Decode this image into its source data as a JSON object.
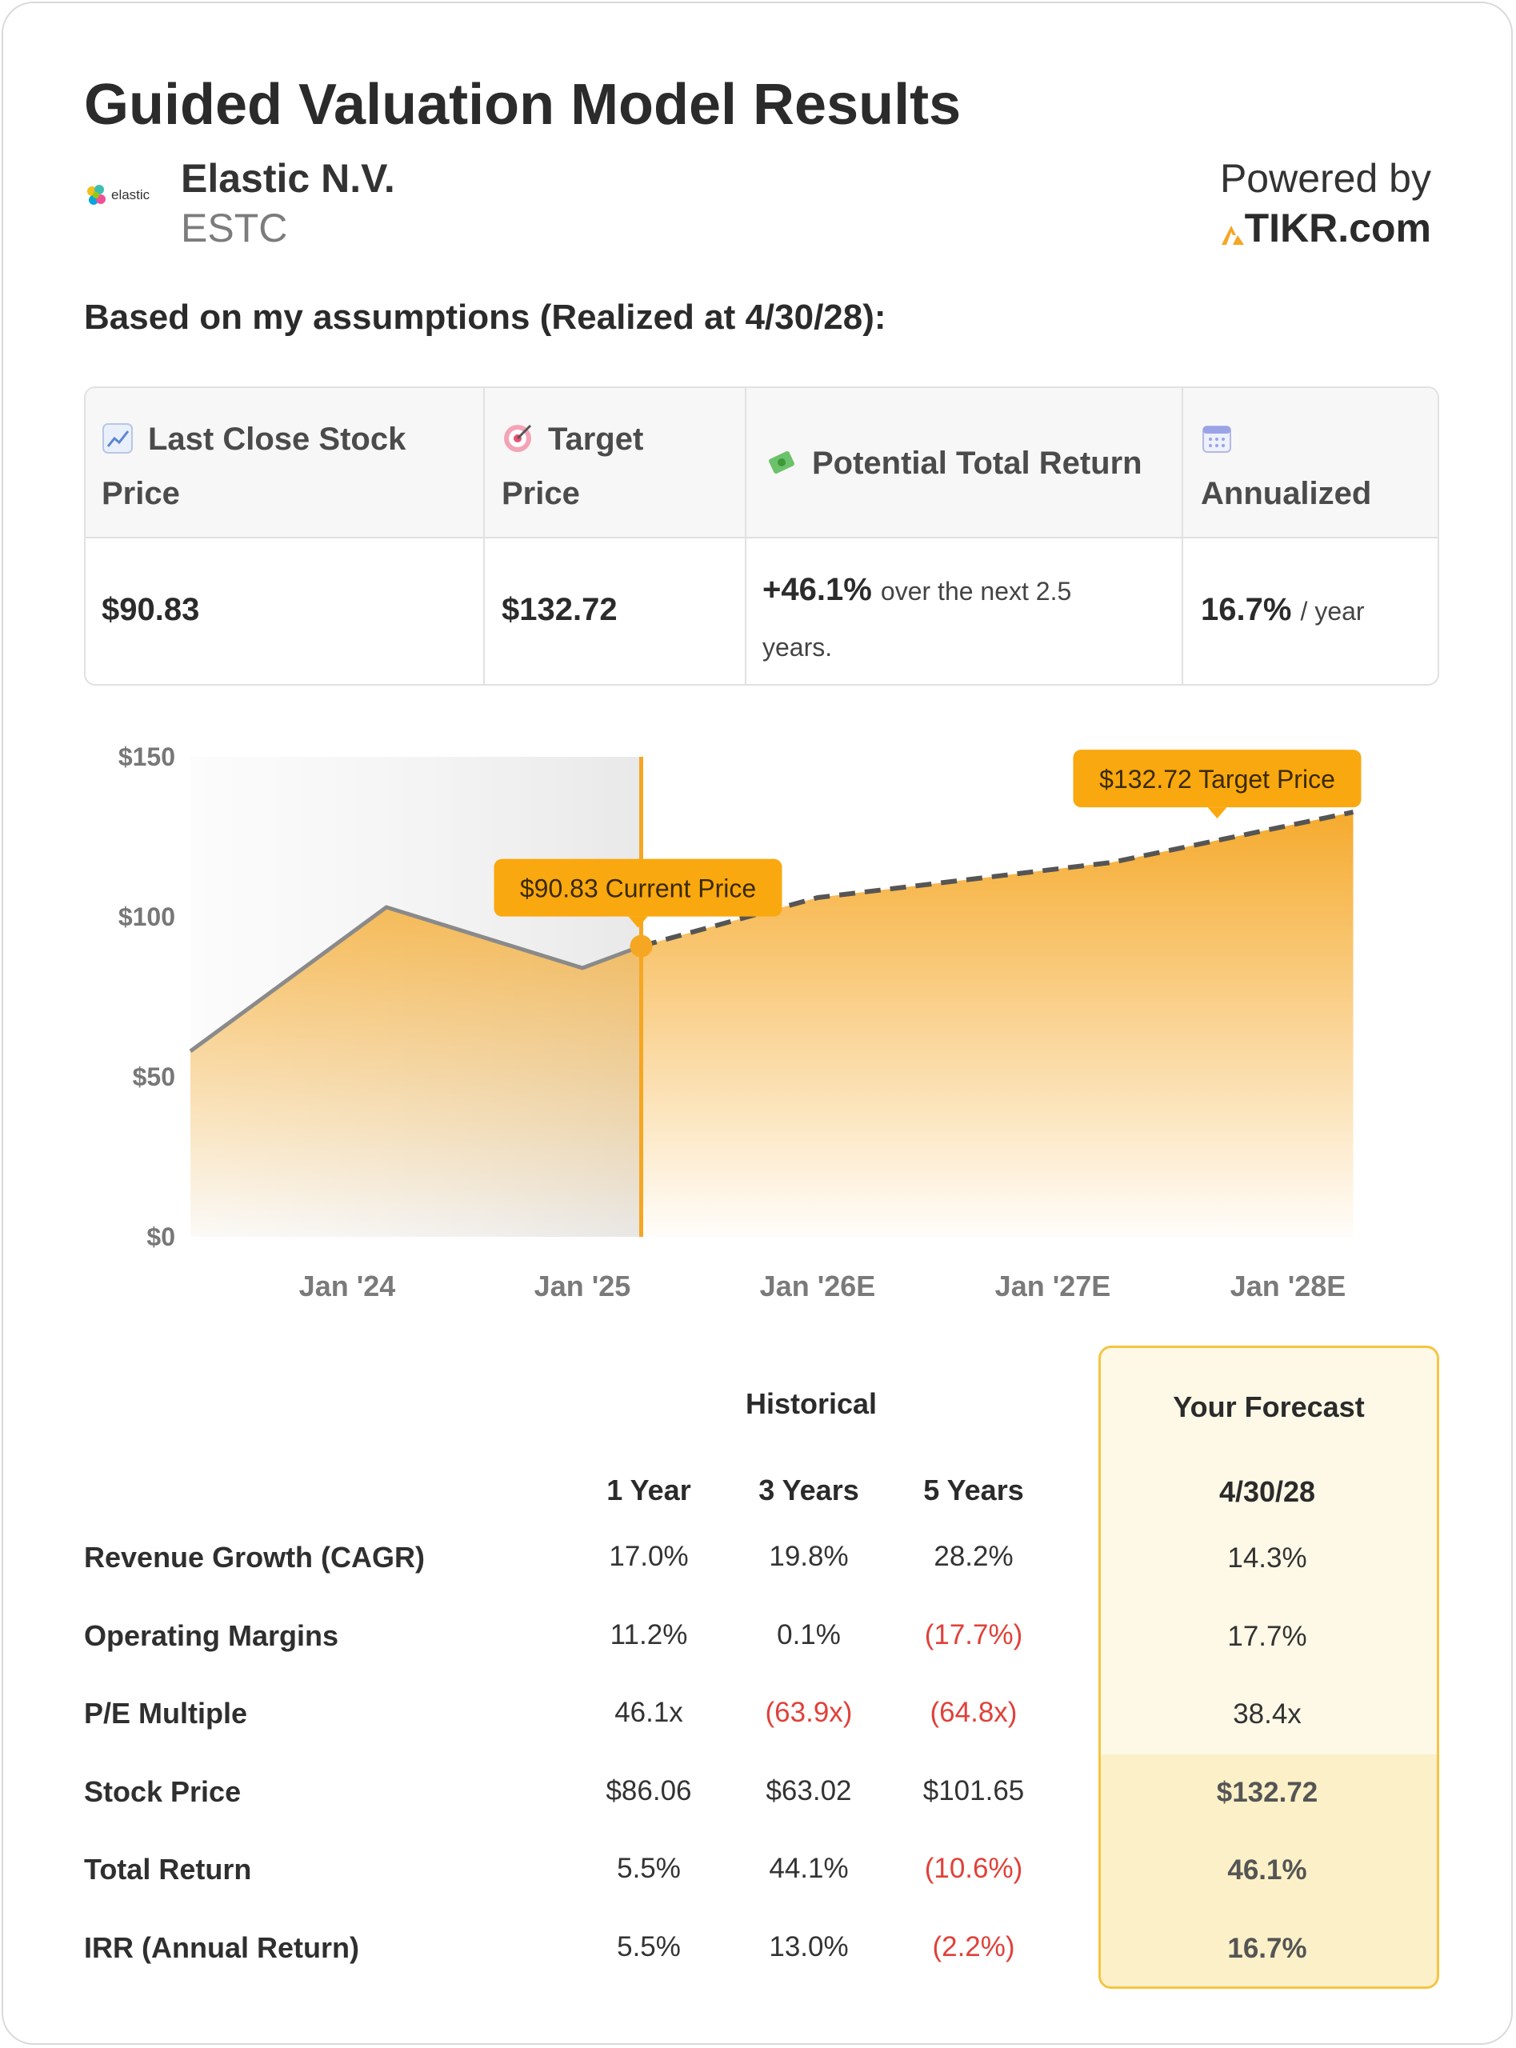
{
  "header": {
    "title": "Guided Valuation Model Results",
    "company_name": "Elastic N.V.",
    "ticker": "ESTC",
    "logo_text": "elastic",
    "powered_by": "Powered by",
    "brand": "TIKR.com",
    "assumptions": "Based on my assumptions (Realized at 4/30/28):"
  },
  "stats": {
    "last_close_label": "Last Close Stock Price",
    "last_close_icon": "chart-increasing-icon",
    "last_close_value": "$90.83",
    "target_label": "Target Price",
    "target_icon": "target-icon",
    "target_value": "$132.72",
    "return_label": "Potential Total Return",
    "return_icon": "money-with-wings-icon",
    "return_value": "+46.1%",
    "return_note": "over the next 2.5 years.",
    "annualized_label": "Annualized",
    "annualized_icon": "calendar-icon",
    "annualized_value": "16.7%",
    "annualized_unit": "/ year"
  },
  "chart_data": {
    "type": "area",
    "x_ticks": [
      "Jan '24",
      "Jan '25",
      "Jan '26E",
      "Jan '27E",
      "Jan '28E"
    ],
    "y_ticks": [
      "$0",
      "$50",
      "$100",
      "$150"
    ],
    "ylim": [
      0,
      150
    ],
    "historical": [
      {
        "x": "May '23",
        "y": 58
      },
      {
        "x": "Mar '24",
        "y": 103
      },
      {
        "x": "Jan '25",
        "y": 84
      },
      {
        "x": "Apr '25",
        "y": 90.83
      }
    ],
    "forecast": [
      {
        "x": "Apr '25",
        "y": 90.83
      },
      {
        "x": "Jan '26",
        "y": 106
      },
      {
        "x": "Apr '27",
        "y": 117
      },
      {
        "x": "Apr '28",
        "y": 132.72
      }
    ],
    "current_label": "$90.83 Current Price",
    "target_label": "$132.72 Target Price",
    "colors": {
      "area": "#f5a623",
      "history_line": "#8a8a8a",
      "forecast_line": "#555555",
      "marker": "#f5a623"
    }
  },
  "metrics": {
    "historical_label": "Historical",
    "forecast_label": "Your Forecast",
    "columns": [
      "1 Year",
      "3 Years",
      "5 Years"
    ],
    "forecast_date": "4/30/28",
    "rows": [
      {
        "label": "Revenue Growth (CAGR)",
        "values": [
          "17.0%",
          "19.8%",
          "28.2%"
        ],
        "forecast": "14.3%"
      },
      {
        "label": "Operating Margins",
        "values": [
          "11.2%",
          "0.1%",
          "(17.7%)"
        ],
        "forecast": "17.7%"
      },
      {
        "label": "P/E Multiple",
        "values": [
          "46.1x",
          "(63.9x)",
          "(64.8x)"
        ],
        "forecast": "38.4x"
      },
      {
        "label": "Stock Price",
        "values": [
          "$86.06",
          "$63.02",
          "$101.65"
        ],
        "forecast": "$132.72"
      },
      {
        "label": "Total Return",
        "values": [
          "5.5%",
          "44.1%",
          "(10.6%)"
        ],
        "forecast": "46.1%"
      },
      {
        "label": "IRR (Annual Return)",
        "values": [
          "5.5%",
          "13.0%",
          "(2.2%)"
        ],
        "forecast": "16.7%"
      }
    ]
  }
}
